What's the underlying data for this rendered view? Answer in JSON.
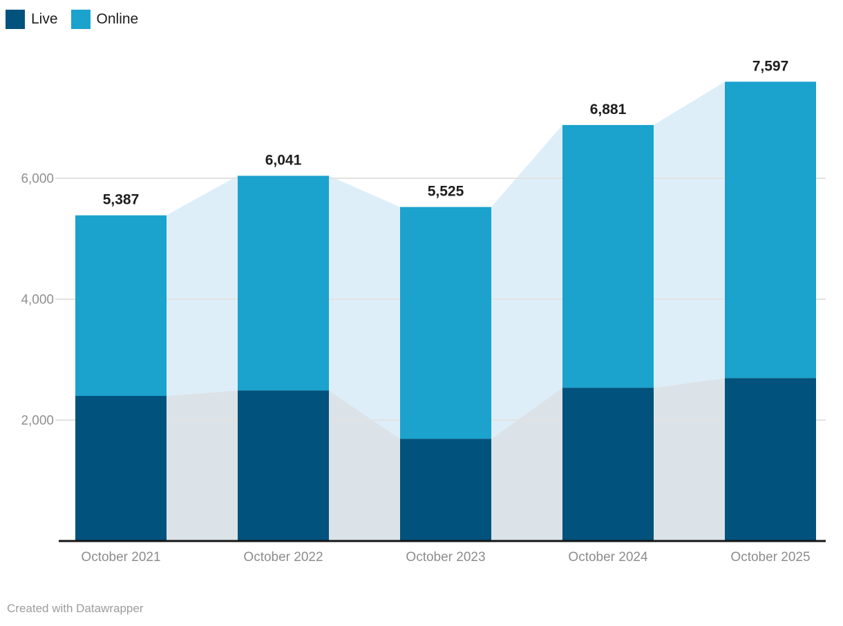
{
  "legend": {
    "items": [
      {
        "label": "Live",
        "color": "#01527c"
      },
      {
        "label": "Online",
        "color": "#1ba2cd"
      }
    ]
  },
  "footer": {
    "credit": "Created with Datawrapper"
  },
  "chart_data": {
    "type": "bar",
    "stacked": true,
    "title": "",
    "xlabel": "",
    "ylabel": "",
    "categories": [
      "October 2021",
      "October 2022",
      "October 2023",
      "October 2024",
      "October 2025"
    ],
    "series": [
      {
        "name": "Live",
        "color": "#01527c",
        "values": [
          2400,
          2490,
          1690,
          2535,
          2695
        ]
      },
      {
        "name": "Online",
        "color": "#1ba2cd",
        "values": [
          2987,
          3551,
          3835,
          4346,
          4902
        ]
      }
    ],
    "totals": [
      5387,
      6041,
      5525,
      6881,
      7597
    ],
    "total_labels": [
      "5,387",
      "6,041",
      "5,525",
      "6,881",
      "7,597"
    ],
    "ylim": [
      0,
      7800
    ],
    "yticks": [
      2000,
      4000,
      6000
    ],
    "ytick_labels": [
      "2,000",
      "4,000",
      "6,000"
    ],
    "grid": true,
    "legend_position": "top-left",
    "connector_fills": {
      "live": "#dbe3e8",
      "online": "#ddeef8"
    },
    "colors": {
      "value_label": "#1d1d1d",
      "axis_line": "#151515",
      "gridline": "#e2e2e2",
      "tick_label": "#8f8f8f",
      "category_label": "#8c8c8c"
    }
  }
}
